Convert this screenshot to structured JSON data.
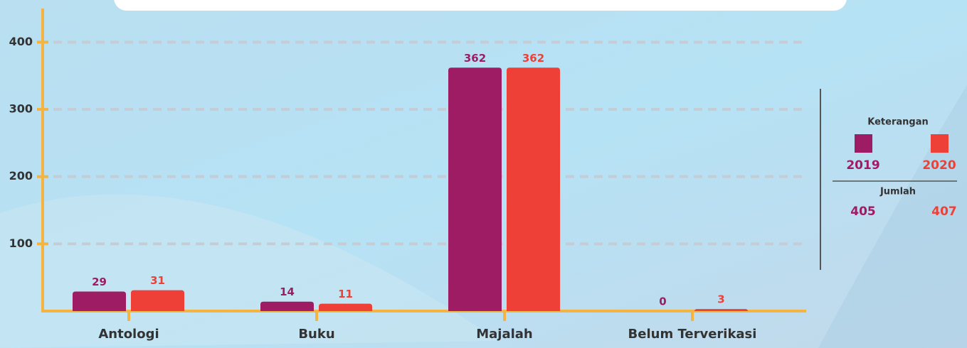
{
  "chart_data": {
    "type": "bar",
    "categories": [
      "Antologi",
      "Buku",
      "Majalah",
      "Belum Terverikasi"
    ],
    "series": [
      {
        "name": "2019",
        "color": "#9e1c63",
        "values": [
          29,
          14,
          362,
          0
        ]
      },
      {
        "name": "2020",
        "color": "#ee4036",
        "values": [
          31,
          11,
          362,
          3
        ]
      }
    ],
    "ylim": [
      0,
      450
    ],
    "yticks": [
      100,
      200,
      300,
      400
    ],
    "grid": true,
    "legend_title": "Keterangan",
    "totals_title": "Jumlah",
    "totals": [
      405,
      407
    ]
  }
}
